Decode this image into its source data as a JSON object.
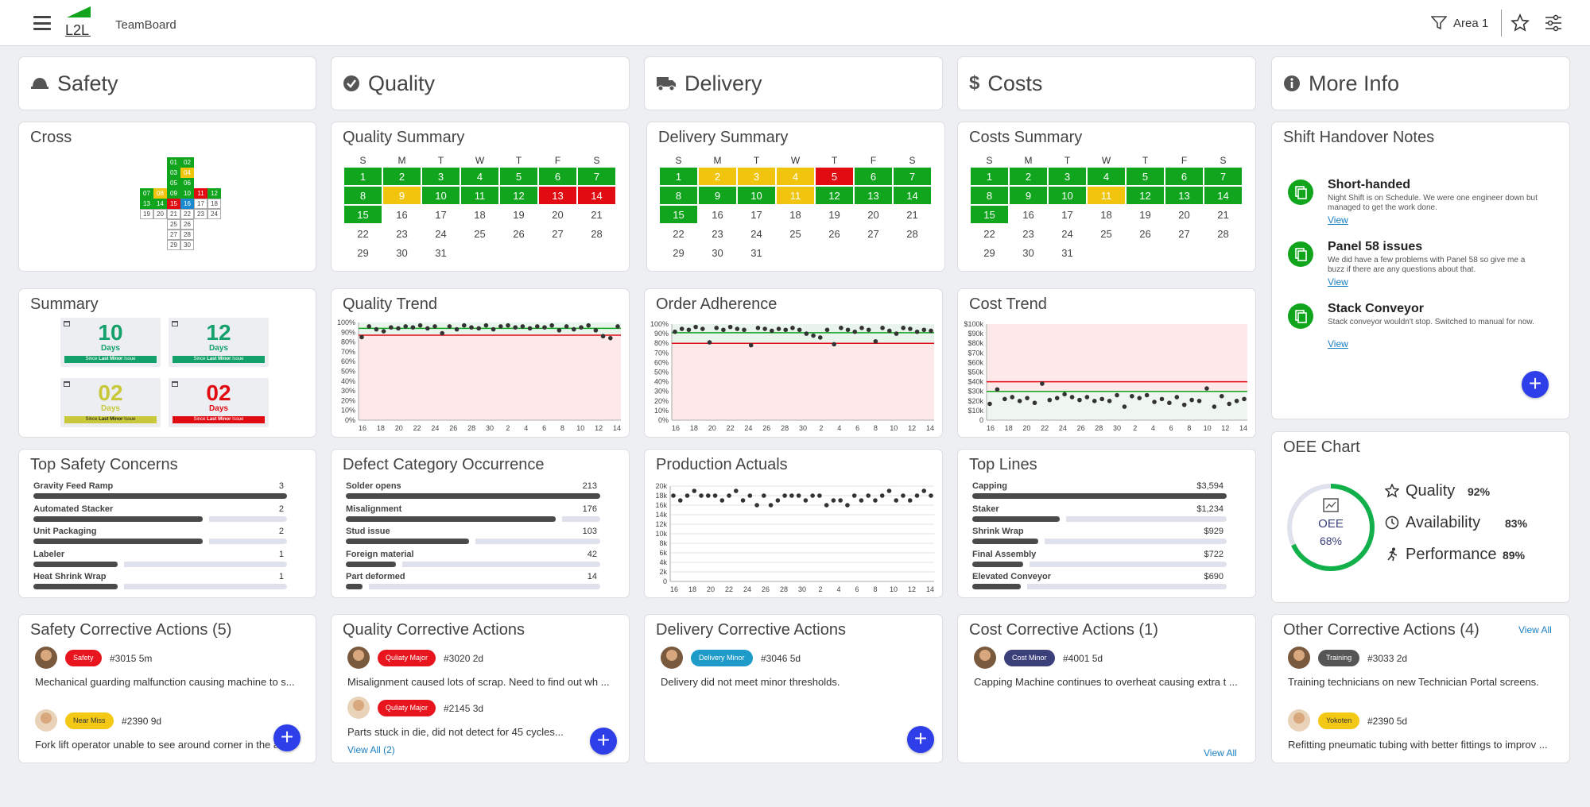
{
  "topbar": {
    "app_title": "TeamBoard",
    "area_label": "Area 1",
    "logo_text": "L2L"
  },
  "headers": {
    "safety": "Safety",
    "quality": "Quality",
    "delivery": "Delivery",
    "costs": "Costs",
    "more": "More Info"
  },
  "cross": {
    "title": "Cross",
    "days": [
      {
        "day": "01",
        "status": "green"
      },
      {
        "day": "02",
        "status": "green"
      },
      {
        "day": "03",
        "status": "green"
      },
      {
        "day": "04",
        "status": "yellow"
      },
      {
        "day": "05",
        "status": "green"
      },
      {
        "day": "06",
        "status": "green"
      },
      {
        "day": "07",
        "status": "green"
      },
      {
        "day": "08",
        "status": "yellow"
      },
      {
        "day": "09",
        "status": "green"
      },
      {
        "day": "10",
        "status": "green"
      },
      {
        "day": "11",
        "status": "red"
      },
      {
        "day": "12",
        "status": "green"
      },
      {
        "day": "13",
        "status": "green"
      },
      {
        "day": "14",
        "status": "green"
      },
      {
        "day": "15",
        "status": "red"
      },
      {
        "day": "16",
        "status": "blue"
      },
      {
        "day": "17",
        "status": "none"
      },
      {
        "day": "18",
        "status": "none"
      },
      {
        "day": "19",
        "status": "none"
      },
      {
        "day": "20",
        "status": "none"
      },
      {
        "day": "21",
        "status": "none"
      },
      {
        "day": "22",
        "status": "none"
      },
      {
        "day": "23",
        "status": "none"
      },
      {
        "day": "24",
        "status": "none"
      },
      {
        "day": "25",
        "status": "none"
      },
      {
        "day": "26",
        "status": "none"
      },
      {
        "day": "27",
        "status": "none"
      },
      {
        "day": "28",
        "status": "none"
      },
      {
        "day": "29",
        "status": "none"
      },
      {
        "day": "30",
        "status": "none"
      }
    ]
  },
  "calendar_days": [
    "S",
    "M",
    "T",
    "W",
    "T",
    "F",
    "S"
  ],
  "quality_summary": {
    "title": "Quality Summary",
    "status": [
      "g",
      "g",
      "g",
      "g",
      "g",
      "g",
      "g",
      "g",
      "y",
      "g",
      "g",
      "g",
      "r",
      "r",
      "g",
      "n",
      "n",
      "n",
      "n",
      "n",
      "n",
      "n",
      "n",
      "n",
      "n",
      "n",
      "n",
      "n",
      "n",
      "n",
      "n"
    ]
  },
  "delivery_summary": {
    "title": "Delivery Summary",
    "status": [
      "g",
      "y",
      "y",
      "y",
      "r",
      "g",
      "g",
      "g",
      "g",
      "g",
      "y",
      "g",
      "g",
      "g",
      "g",
      "n",
      "n",
      "n",
      "n",
      "n",
      "n",
      "n",
      "n",
      "n",
      "n",
      "n",
      "n",
      "n",
      "n",
      "n",
      "n"
    ]
  },
  "costs_summary": {
    "title": "Costs Summary",
    "status": [
      "g",
      "g",
      "g",
      "g",
      "g",
      "g",
      "g",
      "g",
      "g",
      "g",
      "y",
      "g",
      "g",
      "g",
      "g",
      "n",
      "n",
      "n",
      "n",
      "n",
      "n",
      "n",
      "n",
      "n",
      "n",
      "n",
      "n",
      "n",
      "n",
      "n",
      "n"
    ]
  },
  "summary": {
    "title": "Summary",
    "tiles": [
      {
        "value": "10",
        "unit": "Days",
        "caption_prefix": "Since ",
        "caption_bold": "Last Minor",
        "caption_suffix": " Issue",
        "color": "#13a06b"
      },
      {
        "value": "12",
        "unit": "Days",
        "caption_prefix": "Since ",
        "caption_bold": "Last Minor",
        "caption_suffix": " Issue",
        "color": "#13a06b"
      },
      {
        "value": "02",
        "unit": "Days",
        "caption_prefix": "Since ",
        "caption_bold": "Last Minor",
        "caption_suffix": " Issue",
        "color": "#c8c83a"
      },
      {
        "value": "02",
        "unit": "Days",
        "caption_prefix": "Since ",
        "caption_bold": "Last Minor",
        "caption_suffix": " Issue",
        "color": "#e10b12"
      }
    ]
  },
  "x_ticks": [
    "16",
    "18",
    "20",
    "22",
    "24",
    "26",
    "28",
    "30",
    "2",
    "4",
    "6",
    "8",
    "10",
    "12",
    "14"
  ],
  "quality_trend": {
    "title": "Quality Trend",
    "y_ticks": [
      "100%",
      "90%",
      "80%",
      "70%",
      "60%",
      "50%",
      "40%",
      "30%",
      "20%",
      "10%",
      "0%"
    ],
    "target": 87,
    "goal_line": 94,
    "values": [
      85,
      96,
      93,
      91,
      95,
      94,
      96,
      95,
      97,
      94,
      96,
      89,
      96,
      93,
      97,
      95,
      94,
      97,
      93,
      96,
      97,
      95,
      96,
      94,
      96,
      95,
      97,
      92,
      96,
      93,
      95,
      97,
      92,
      86,
      84,
      96
    ]
  },
  "order_adherence": {
    "title": "Order Adherence",
    "y_ticks": [
      "100%",
      "90%",
      "80%",
      "70%",
      "60%",
      "50%",
      "40%",
      "30%",
      "20%",
      "10%",
      "0%"
    ],
    "target": 80,
    "goal_line": 91,
    "values": [
      92,
      95,
      94,
      97,
      95,
      81,
      96,
      94,
      97,
      95,
      94,
      78,
      96,
      95,
      93,
      95,
      94,
      96,
      94,
      90,
      88,
      86,
      94,
      79,
      96,
      94,
      92,
      96,
      94,
      82,
      96,
      93,
      90,
      96,
      95,
      92,
      94,
      93
    ]
  },
  "cost_trend": {
    "title": "Cost Trend",
    "y_ticks": [
      "$100k",
      "$90k",
      "$80k",
      "$70k",
      "$60k",
      "$50k",
      "$40k",
      "$30k",
      "$20k",
      "$10k",
      "0"
    ],
    "target": 40,
    "goal_line": 30,
    "values": [
      17,
      32,
      22,
      24,
      20,
      23,
      18,
      38,
      21,
      23,
      27,
      24,
      21,
      24,
      20,
      22,
      20,
      26,
      14,
      25,
      23,
      26,
      19,
      22,
      18,
      24,
      16,
      21,
      20,
      33,
      14,
      25,
      17,
      20,
      22
    ]
  },
  "production_actuals": {
    "title": "Production Actuals",
    "y_ticks": [
      "20k",
      "18k",
      "16k",
      "14k",
      "12k",
      "10k",
      "8k",
      "6k",
      "4k",
      "2k",
      "0"
    ],
    "values": [
      18,
      17,
      18,
      19,
      18,
      18,
      18,
      17,
      18,
      19,
      17,
      18,
      16,
      18,
      16,
      17,
      18,
      18,
      18,
      17,
      18,
      18,
      16,
      17,
      17,
      16,
      18,
      17,
      18,
      17,
      18,
      19,
      17,
      18,
      17,
      18,
      19,
      18
    ]
  },
  "safety_concerns": {
    "title": "Top Safety Concerns",
    "max": 3,
    "rows": [
      {
        "label": "Gravity Feed Ramp",
        "value": "3",
        "num": 3
      },
      {
        "label": "Automated Stacker",
        "value": "2",
        "num": 2
      },
      {
        "label": "Unit Packaging",
        "value": "2",
        "num": 2
      },
      {
        "label": "Labeler",
        "value": "1",
        "num": 1
      },
      {
        "label": "Heat Shrink Wrap",
        "value": "1",
        "num": 1
      }
    ]
  },
  "defect_occurrence": {
    "title": "Defect Category Occurrence",
    "max": 213,
    "rows": [
      {
        "label": "Solder opens",
        "value": "213",
        "num": 213
      },
      {
        "label": "Misalignment",
        "value": "176",
        "num": 176
      },
      {
        "label": "Stud issue",
        "value": "103",
        "num": 103
      },
      {
        "label": "Foreign material",
        "value": "42",
        "num": 42
      },
      {
        "label": "Part deformed",
        "value": "14",
        "num": 14
      }
    ]
  },
  "top_lines": {
    "title": "Top Lines",
    "max": 3594,
    "rows": [
      {
        "label": "Capping",
        "value": "$3,594",
        "num": 3594
      },
      {
        "label": "Staker",
        "value": "$1,234",
        "num": 1234
      },
      {
        "label": "Shrink Wrap",
        "value": "$929",
        "num": 929
      },
      {
        "label": "Final Assembly",
        "value": "$722",
        "num": 722
      },
      {
        "label": "Elevated Conveyor",
        "value": "$690",
        "num": 690
      }
    ]
  },
  "shift_notes": {
    "title": "Shift Handover Notes",
    "items": [
      {
        "title": "Short-handed",
        "body": "Night Shift is on Schedule. We were one engineer down but managed to get the work done.",
        "link": "View"
      },
      {
        "title": "Panel 58 issues",
        "body": "We did have a few problems with Panel 58 so give me a buzz if there are any questions about that.",
        "link": "View"
      },
      {
        "title": "Stack Conveyor",
        "body": "Stack conveyor wouldn't stop. Switched to manual for now.",
        "link": "View"
      }
    ]
  },
  "oee": {
    "title": "OEE Chart",
    "center_label": "OEE",
    "center_value": "68%",
    "fraction": 0.68,
    "metrics": [
      {
        "label": "Quality",
        "value": "92%"
      },
      {
        "label": "Availability",
        "value": "83%"
      },
      {
        "label": "Performance",
        "value": "89%"
      }
    ]
  },
  "safety_actions": {
    "title": "Safety Corrective Actions (5)",
    "items": [
      {
        "tag": "Safety",
        "tag_color": "#e8141e",
        "id": "#3015",
        "age": "5m",
        "text": "Mechanical guarding malfunction causing machine to s..."
      },
      {
        "tag": "Near Miss",
        "tag_color": "#f3c916",
        "id": "#2390",
        "age": "9d",
        "text": "Fork lift operator unable to see around corner in the a..."
      }
    ]
  },
  "quality_actions": {
    "title": "Quality Corrective Actions",
    "items": [
      {
        "tag": "Quliaty Major",
        "tag_color": "#e8141e",
        "id": "#3020",
        "age": "2d",
        "text": "Misalignment caused lots of scrap. Need to find out wh ..."
      },
      {
        "tag": "Quliaty Major",
        "tag_color": "#e8141e",
        "id": "#2145",
        "age": "3d",
        "text": "Parts stuck in die, did not detect for 45 cycles..."
      }
    ],
    "view_all": "View All (2)"
  },
  "delivery_actions": {
    "title": "Delivery Corrective Actions",
    "items": [
      {
        "tag": "Delivery Minor",
        "tag_color": "#1e9bc9",
        "id": "#3046",
        "age": "5d",
        "text": "Delivery did not meet minor thresholds."
      }
    ]
  },
  "cost_actions": {
    "title": "Cost Corrective Actions (1)",
    "items": [
      {
        "tag": "Cost Minor",
        "tag_color": "#3b3f7a",
        "id": "#4001",
        "age": "5d",
        "text": "Capping Machine continues to overheat causing extra t ..."
      }
    ],
    "view_all": "View All"
  },
  "other_actions": {
    "title": "Other Corrective Actions (4)",
    "view_all": "View All",
    "items": [
      {
        "tag": "Training",
        "tag_color": "#555555",
        "id": "#3033",
        "age": "2d",
        "text": "Training technicians on new Technician Portal screens."
      },
      {
        "tag": "Yokoten",
        "tag_color": "#f3c916",
        "id": "#2390",
        "age": "5d",
        "text": "Refitting pneumatic tubing with better fittings to improv ..."
      }
    ]
  },
  "colors": {
    "green": "#11a51e",
    "yellow": "#f1c50e",
    "red": "#e10b12",
    "blue": "#1a89d0",
    "accent": "#2e3ee8",
    "link": "#1a7fc1"
  }
}
